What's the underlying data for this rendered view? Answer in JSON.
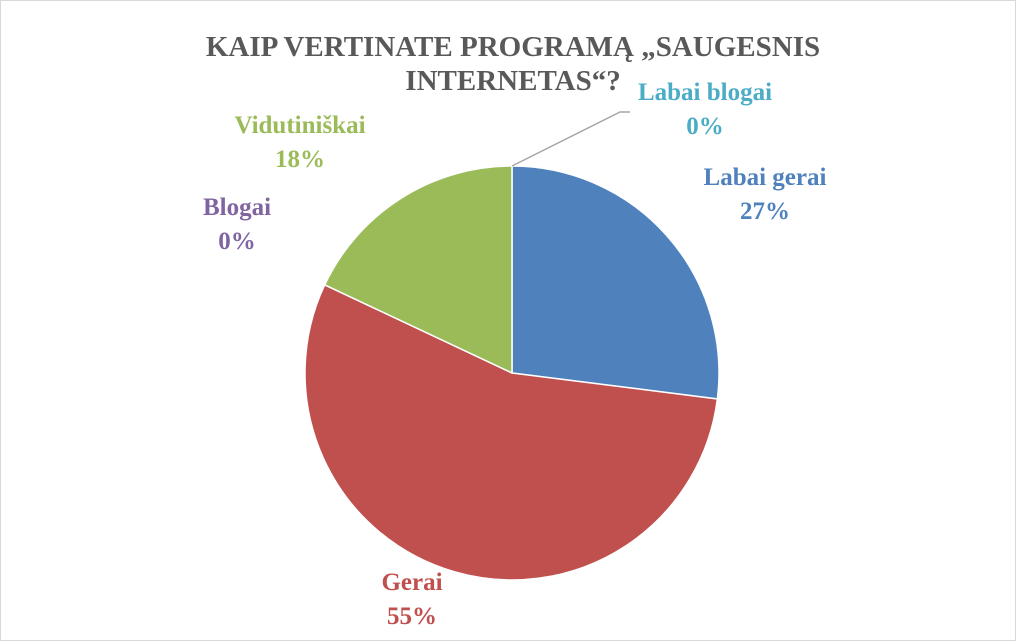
{
  "chart_data": {
    "type": "pie",
    "title": "KAIP VERTINATE PROGRAMĄ „SAUGESNIS INTERNETAS“?",
    "categories": [
      "Labai gerai",
      "Gerai",
      "Blogai",
      "Vidutiniškai",
      "Labai blogai"
    ],
    "values": [
      27,
      55,
      0,
      18,
      0
    ],
    "value_labels": [
      "27%",
      "55%",
      "0%",
      "18%",
      "0%"
    ],
    "colors": [
      "#4f81bd",
      "#c0504d",
      "#8064a2",
      "#9bbb59",
      "#4bacc6"
    ]
  }
}
